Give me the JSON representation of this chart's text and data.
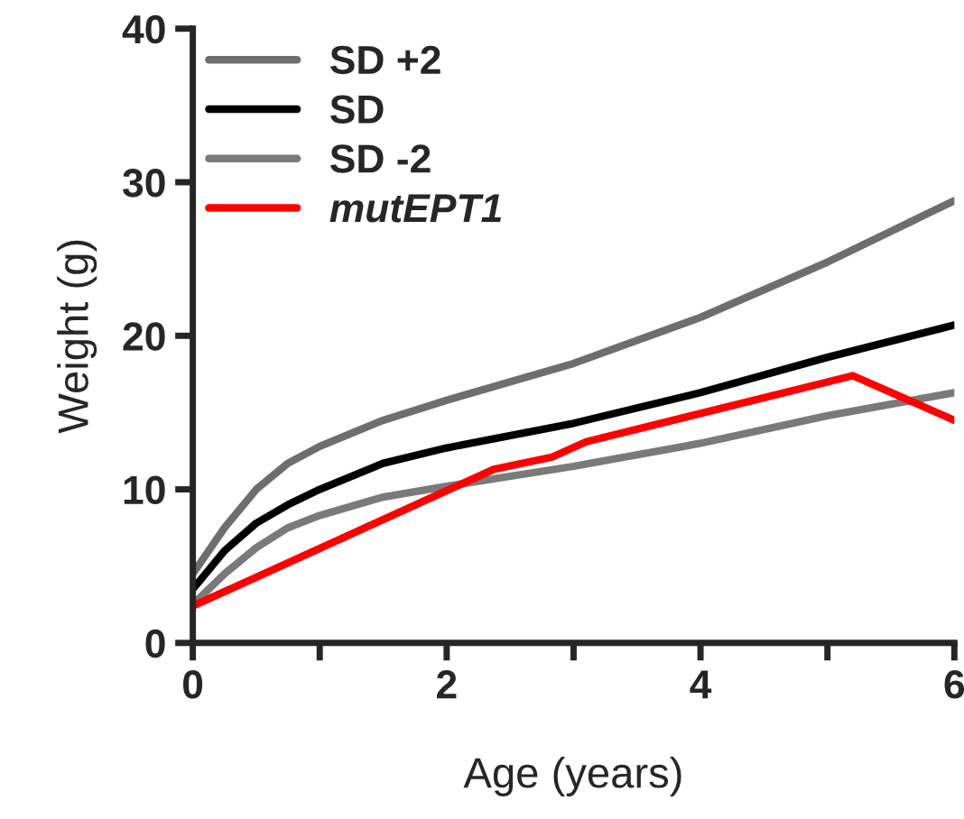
{
  "chart_data": {
    "type": "line",
    "xlabel": "Age (years)",
    "ylabel": "Weight (g)",
    "xlim": [
      0,
      6
    ],
    "xticks": [
      0,
      {
        "value": 1,
        "label": null
      },
      2,
      {
        "value": 3,
        "label": null
      },
      4,
      {
        "value": 5,
        "label": null
      },
      6
    ],
    "ylim": [
      0,
      40
    ],
    "yticks": [
      0,
      10,
      20,
      30,
      40
    ],
    "grid": false,
    "legend": "top left",
    "marker": "none",
    "line_style": "solid",
    "series": [
      {
        "name": "SD +2",
        "color": "#6e6e6e",
        "x": [
          0,
          0.25,
          0.5,
          0.75,
          1,
          1.5,
          2,
          3,
          4,
          5,
          6
        ],
        "values": [
          4.5,
          7.5,
          10,
          11.7,
          12.8,
          14.5,
          15.8,
          18.2,
          21.2,
          24.8,
          28.8
        ]
      },
      {
        "name": "SD",
        "color": "#000000",
        "x": [
          0,
          0.25,
          0.5,
          0.75,
          1,
          1.5,
          2,
          3,
          4,
          5,
          6
        ],
        "values": [
          3.5,
          6,
          7.8,
          9,
          10,
          11.7,
          12.7,
          14.3,
          16.3,
          18.6,
          20.7
        ]
      },
      {
        "name": "SD -2",
        "color": "#7a7a7a",
        "x": [
          0,
          0.25,
          0.5,
          0.75,
          1,
          1.5,
          2,
          3,
          4,
          5,
          6
        ],
        "values": [
          2.5,
          4.5,
          6.2,
          7.5,
          8.3,
          9.5,
          10.2,
          11.5,
          13,
          14.8,
          16.3
        ]
      },
      {
        "name": "mutEPT1",
        "color": "#ff0000",
        "x": [
          0,
          2.37,
          2.83,
          3.1,
          5.2,
          6
        ],
        "values": [
          2.4,
          11.3,
          12.1,
          13.1,
          17.4,
          14.5
        ]
      }
    ]
  }
}
